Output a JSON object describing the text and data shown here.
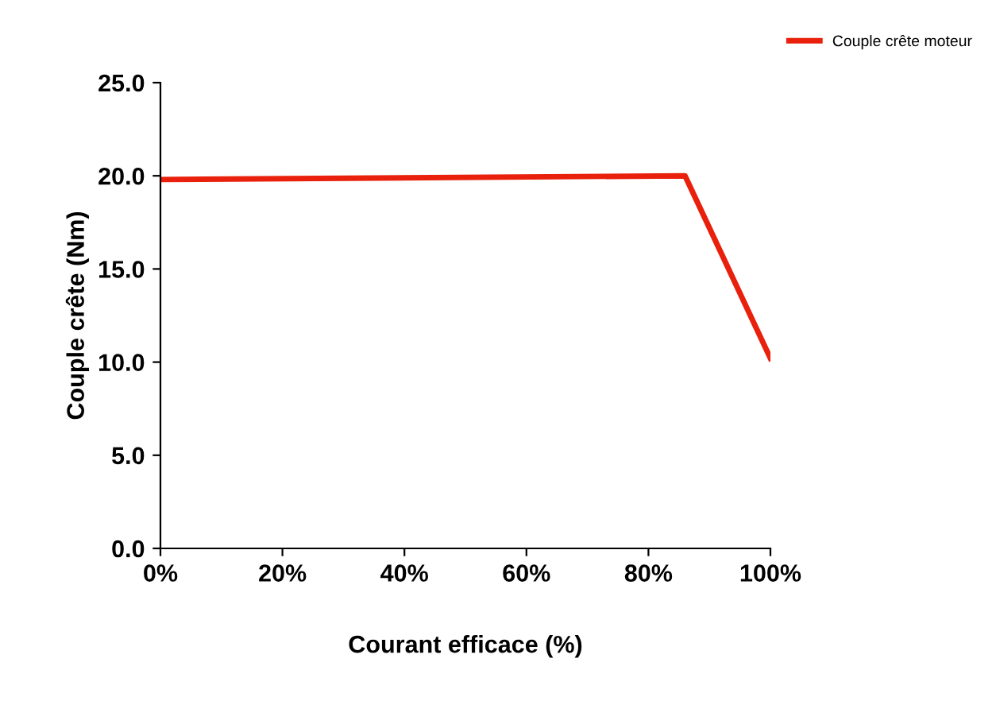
{
  "chart_data": {
    "type": "line",
    "xlabel": "Courant efficace (%)",
    "ylabel": "Couple crête (Nm)",
    "series": [
      {
        "name": "Couple crête moteur",
        "color": "#e8200c",
        "x": [
          0,
          86,
          100
        ],
        "values": [
          19.8,
          20.0,
          10.2
        ]
      }
    ],
    "xlim": [
      0,
      100
    ],
    "xticks": [
      {
        "value": 0,
        "label": "0%"
      },
      {
        "value": 20,
        "label": "20%"
      },
      {
        "value": 40,
        "label": "40%"
      },
      {
        "value": 60,
        "label": "60%"
      },
      {
        "value": 80,
        "label": "80%"
      },
      {
        "value": 100,
        "label": "100%"
      }
    ],
    "ylim": [
      0,
      25
    ],
    "yticks": [
      {
        "value": 0,
        "label": "0.0"
      },
      {
        "value": 5,
        "label": "5.0"
      },
      {
        "value": 10,
        "label": "10.0"
      },
      {
        "value": 15,
        "label": "15.0"
      },
      {
        "value": 20,
        "label": "20.0"
      },
      {
        "value": 25,
        "label": "25.0"
      }
    ],
    "grid": false,
    "legend": "top right",
    "marker": "none",
    "line_style": "solid"
  }
}
